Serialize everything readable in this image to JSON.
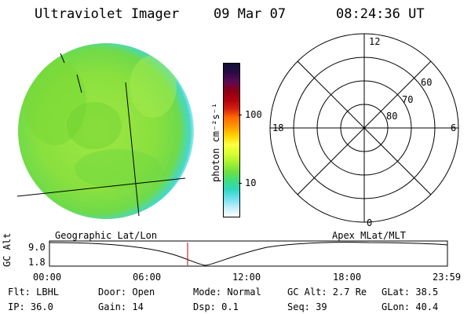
{
  "header": {
    "instrument": "Ultraviolet Imager",
    "date": "09 Mar 07",
    "time": "08:24:36 UT"
  },
  "colorbar": {
    "unit_label": "photon cm⁻²s⁻¹",
    "ticks": [
      "100",
      "10"
    ],
    "colors": [
      "#111133",
      "#2a0a45",
      "#5b0a55",
      "#8b0015",
      "#b00010",
      "#d02010",
      "#ff6a00",
      "#ff9800",
      "#ffd200",
      "#ffff40",
      "#d8ff30",
      "#a8f030",
      "#70e040",
      "#40dd80",
      "#30d8c0",
      "#70e0f0",
      "#c0eef8",
      "#ffffff"
    ]
  },
  "polar_plot": {
    "mlt_labels": {
      "top": "12",
      "left": "18",
      "right": "6",
      "bottom": "0"
    },
    "lat_labels": [
      "60",
      "70",
      "80"
    ]
  },
  "timeline": {
    "left_title": "Geographic Lat/Lon",
    "right_title": "Apex MLat/MLT",
    "axis_label": "GC Alt",
    "y_max": "9.0",
    "y_min": "1.8",
    "x_ticks": [
      "00:00",
      "06:00",
      "12:00",
      "18:00",
      "23:59"
    ],
    "marker_color": "#cc0000"
  },
  "status": {
    "flt": "Flt: LBHL",
    "ip": "IP: 36.0",
    "door": "Door: Open",
    "gain": "Gain: 14",
    "mode": "Mode: Normal",
    "dsp": "Dsp:     0.1",
    "gc_alt": "GC Alt: 2.7 Re",
    "seq": "Seq: 39",
    "glat": "GLat:  38.5",
    "glon": "GLon:  40.4"
  },
  "colors": {
    "disk_primary": "#8fe040",
    "disk_secondary": "#6fd830",
    "disk_edge": "#40d8e0",
    "grid_line": "#000000"
  }
}
